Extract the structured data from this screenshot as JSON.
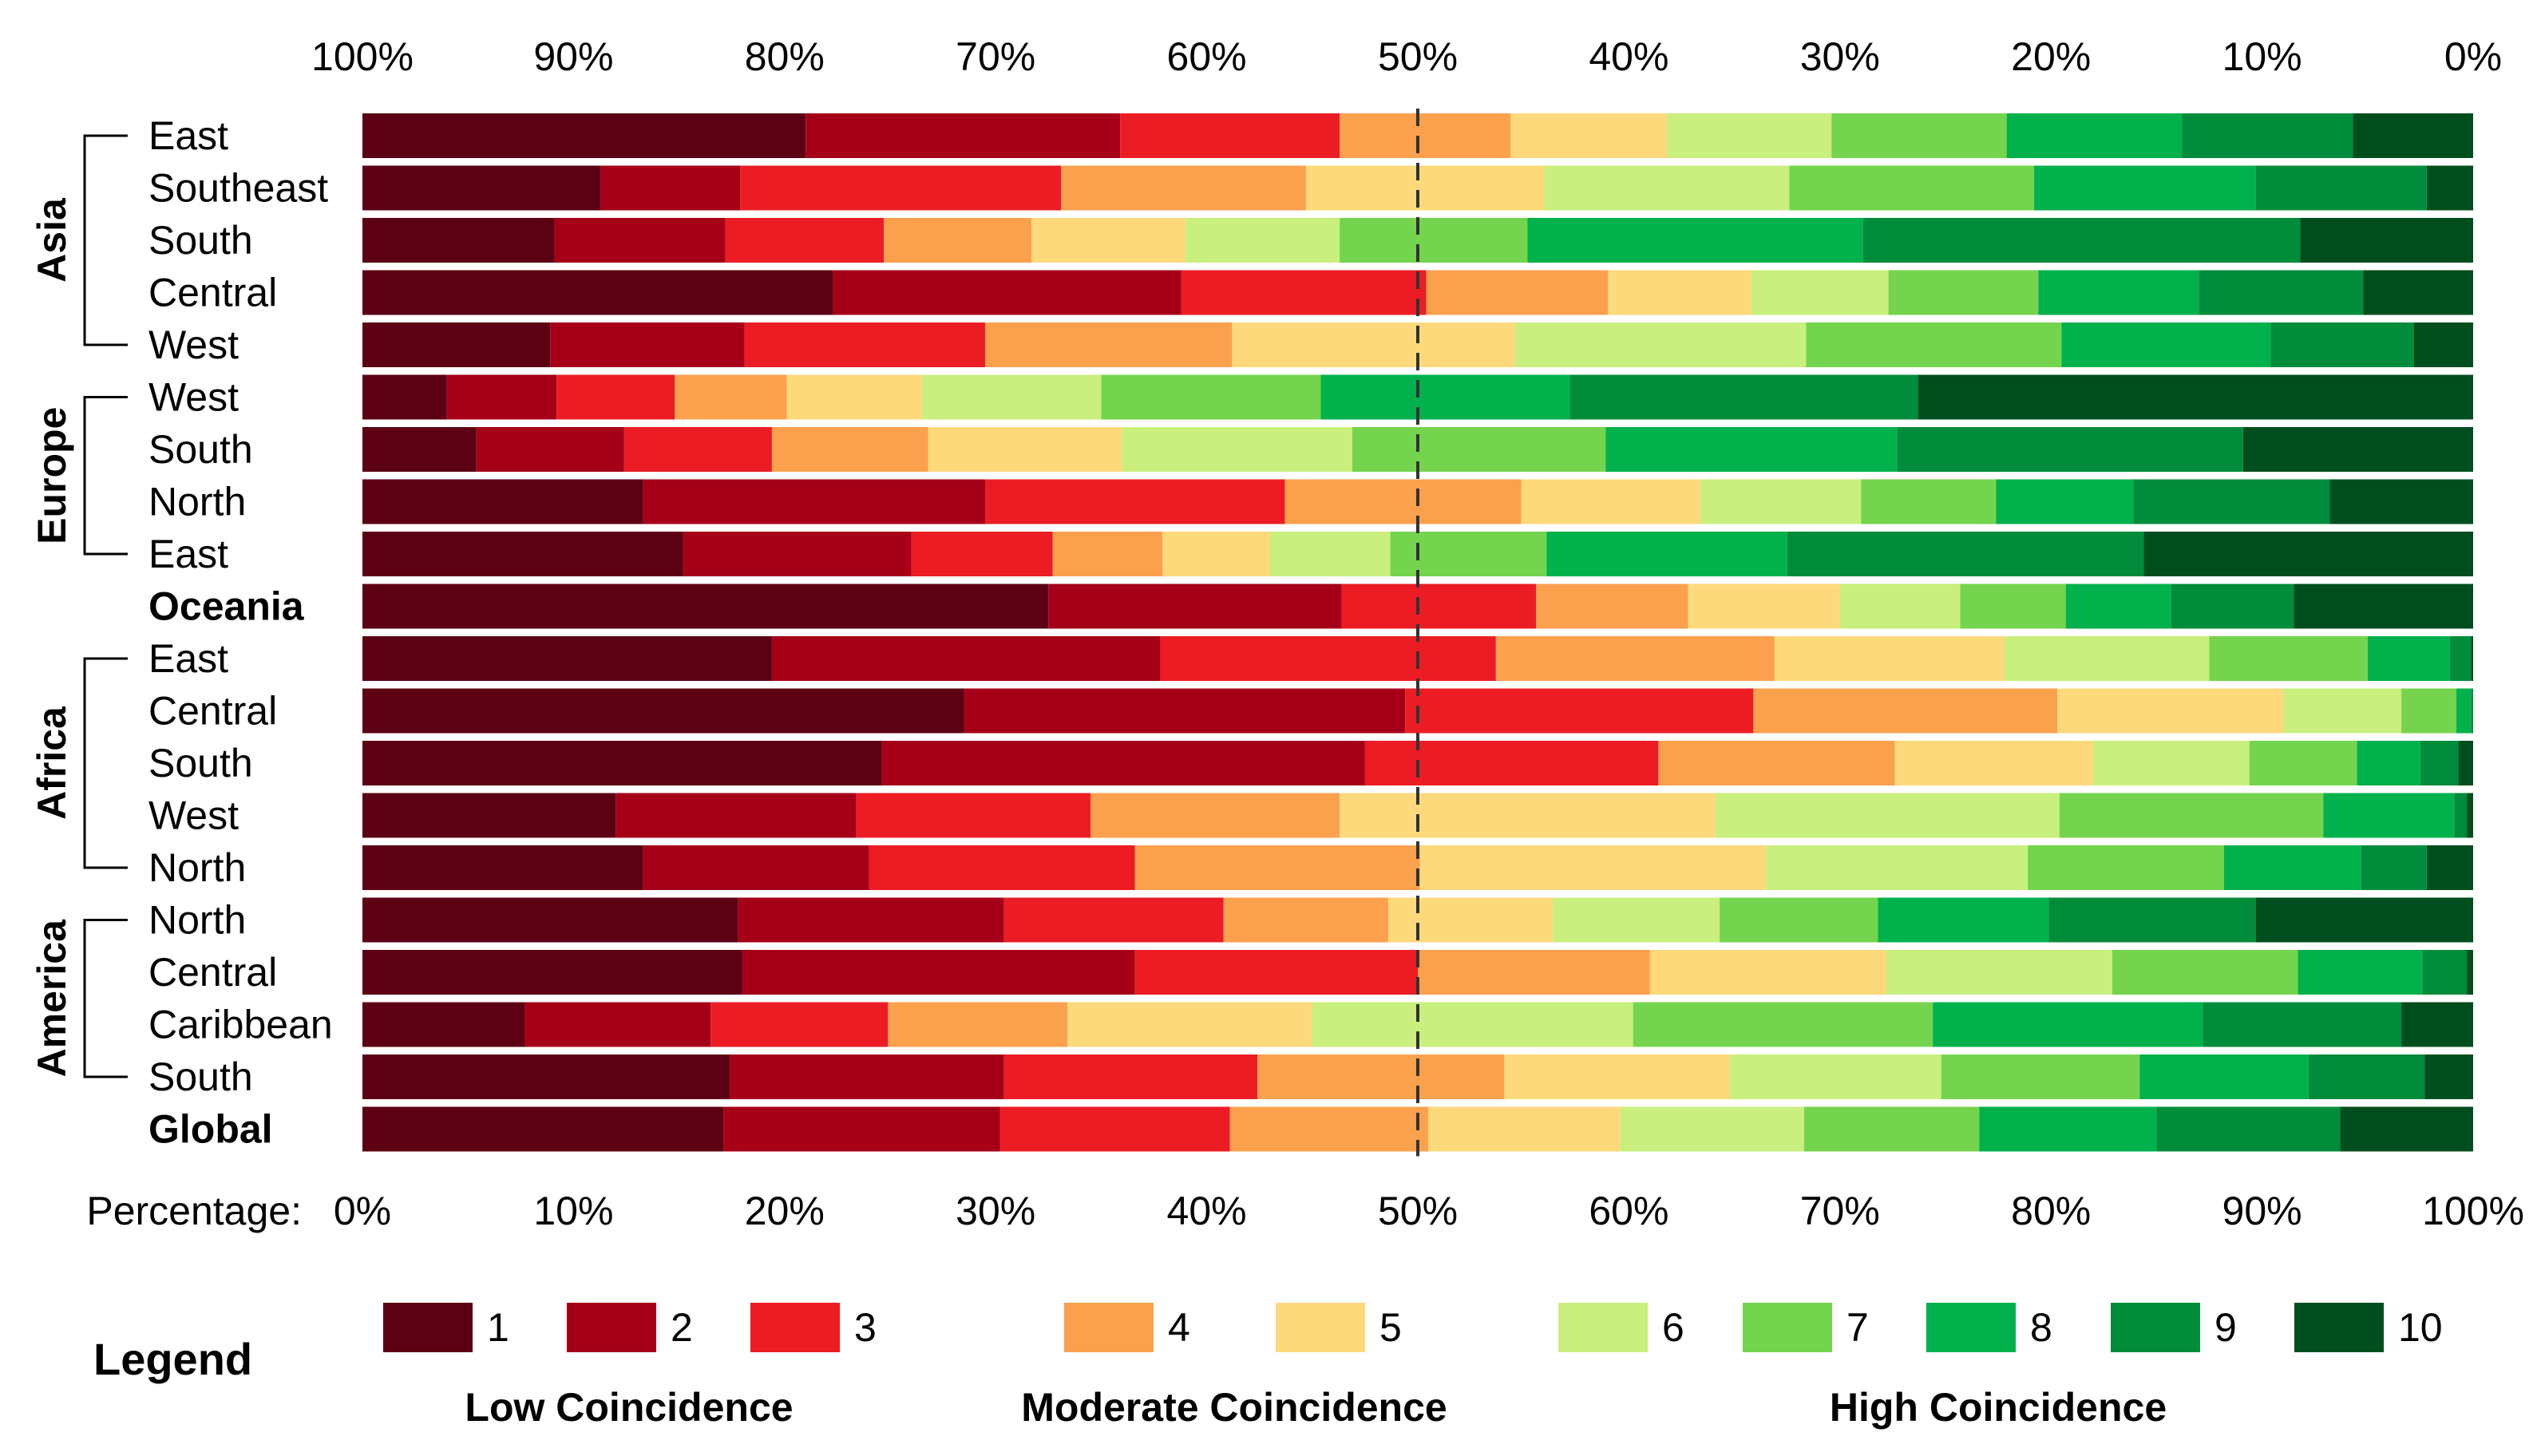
{
  "chart_data": {
    "type": "bar",
    "orientation": "horizontal",
    "stacked": true,
    "normalized_percent": true,
    "x_axis_label": "Percentage:",
    "bottom_ticks": [
      "0%",
      "10%",
      "20%",
      "30%",
      "40%",
      "50%",
      "60%",
      "70%",
      "80%",
      "90%",
      "100%"
    ],
    "top_ticks": [
      "100%",
      "90%",
      "80%",
      "70%",
      "60%",
      "50%",
      "40%",
      "30%",
      "20%",
      "10%",
      "0%"
    ],
    "xlim": [
      0,
      100
    ],
    "reference_line": 50,
    "groups": [
      {
        "name": "Asia",
        "rows": [
          "East",
          "Southeast",
          "South",
          "Central",
          "West"
        ]
      },
      {
        "name": "Europe",
        "rows": [
          "West",
          "South",
          "North",
          "East"
        ]
      },
      {
        "name": "",
        "rows": [
          "Oceania"
        ]
      },
      {
        "name": "Africa",
        "rows": [
          "East",
          "Central",
          "South",
          "West",
          "North"
        ]
      },
      {
        "name": "America",
        "rows": [
          "North",
          "Central",
          "Caribbean",
          "South"
        ]
      },
      {
        "name": "",
        "rows": [
          "Global"
        ]
      }
    ],
    "rows": [
      {
        "label": "East",
        "group": "Asia",
        "bold": false,
        "values": [
          21.0,
          14.9,
          10.4,
          8.1,
          7.4,
          7.8,
          8.3,
          8.3,
          8.1,
          5.7
        ]
      },
      {
        "label": "Southeast",
        "group": "Asia",
        "bold": false,
        "values": [
          11.3,
          6.6,
          15.2,
          11.6,
          11.3,
          11.6,
          11.6,
          10.5,
          8.1,
          2.2
        ]
      },
      {
        "label": "South",
        "group": "Asia",
        "bold": false,
        "values": [
          9.1,
          8.1,
          7.5,
          7.0,
          7.3,
          7.3,
          8.9,
          15.9,
          20.7,
          8.2
        ]
      },
      {
        "label": "Central",
        "group": "Asia",
        "bold": false,
        "values": [
          22.3,
          16.5,
          11.6,
          8.6,
          6.8,
          6.5,
          7.1,
          7.6,
          7.8,
          5.2
        ]
      },
      {
        "label": "West",
        "group": "Asia",
        "bold": false,
        "values": [
          8.9,
          9.2,
          11.4,
          11.7,
          13.4,
          13.8,
          12.1,
          9.9,
          6.8,
          2.8
        ]
      },
      {
        "label": "West",
        "group": "Europe",
        "bold": false,
        "values": [
          4.0,
          5.2,
          5.6,
          5.3,
          6.4,
          8.5,
          10.4,
          11.8,
          16.5,
          26.3
        ]
      },
      {
        "label": "South",
        "group": "Europe",
        "bold": false,
        "values": [
          5.4,
          7.0,
          7.0,
          7.4,
          9.2,
          10.9,
          12.0,
          13.8,
          16.4,
          10.9
        ]
      },
      {
        "label": "North",
        "group": "Europe",
        "bold": false,
        "values": [
          13.3,
          16.2,
          14.2,
          11.2,
          8.5,
          7.6,
          6.4,
          6.5,
          9.3,
          6.8
        ]
      },
      {
        "label": "East",
        "group": "Europe",
        "bold": false,
        "values": [
          15.2,
          10.8,
          6.7,
          5.2,
          5.1,
          5.7,
          7.4,
          11.4,
          16.9,
          15.6
        ]
      },
      {
        "label": "Oceania",
        "group": "",
        "bold": true,
        "values": [
          32.5,
          13.9,
          9.2,
          7.2,
          7.2,
          5.7,
          5.0,
          5.0,
          5.8,
          8.5
        ]
      },
      {
        "label": "East",
        "group": "Africa",
        "bold": false,
        "values": [
          19.4,
          18.4,
          15.9,
          13.2,
          10.9,
          9.7,
          7.5,
          3.9,
          1.0,
          0.1
        ]
      },
      {
        "label": "Central",
        "group": "Africa",
        "bold": false,
        "values": [
          28.5,
          20.9,
          16.5,
          14.4,
          10.7,
          5.6,
          2.6,
          0.7,
          0.1,
          0.0
        ]
      },
      {
        "label": "South",
        "group": "Africa",
        "bold": false,
        "values": [
          24.6,
          22.9,
          13.9,
          11.2,
          9.4,
          7.4,
          5.1,
          3.0,
          1.8,
          0.7
        ]
      },
      {
        "label": "West",
        "group": "Africa",
        "bold": false,
        "values": [
          12.0,
          11.4,
          11.1,
          11.8,
          17.8,
          16.3,
          12.5,
          6.2,
          0.6,
          0.3
        ]
      },
      {
        "label": "North",
        "group": "Africa",
        "bold": false,
        "values": [
          13.3,
          10.7,
          12.6,
          13.5,
          16.4,
          12.4,
          9.3,
          6.5,
          3.1,
          2.2
        ]
      },
      {
        "label": "North",
        "group": "America",
        "bold": false,
        "values": [
          17.8,
          12.6,
          10.4,
          7.8,
          7.8,
          7.9,
          7.5,
          8.1,
          9.8,
          10.3
        ]
      },
      {
        "label": "Central",
        "group": "America",
        "bold": false,
        "values": [
          18.0,
          18.6,
          13.4,
          11.0,
          11.2,
          10.7,
          8.8,
          5.9,
          2.1,
          0.3
        ]
      },
      {
        "label": "Caribbean",
        "group": "America",
        "bold": false,
        "values": [
          7.7,
          8.8,
          8.4,
          8.5,
          11.6,
          15.2,
          14.2,
          12.8,
          9.4,
          3.4
        ]
      },
      {
        "label": "South",
        "group": "America",
        "bold": false,
        "values": [
          17.4,
          13.0,
          12.0,
          11.7,
          10.7,
          10.0,
          9.4,
          8.0,
          5.5,
          2.3
        ]
      },
      {
        "label": "Global",
        "group": "",
        "bold": true,
        "values": [
          17.1,
          13.1,
          10.9,
          9.4,
          9.1,
          8.7,
          8.3,
          8.4,
          8.7,
          6.3
        ]
      }
    ],
    "legend": {
      "title": "Legend",
      "items": [
        "1",
        "2",
        "3",
        "4",
        "5",
        "6",
        "7",
        "8",
        "9",
        "10"
      ],
      "groups": [
        "Low Coincidence",
        "Moderate Coincidence",
        "High Coincidence"
      ]
    },
    "colors": [
      "#5c0013",
      "#a60018",
      "#ec1c24",
      "#fba04d",
      "#fdd97b",
      "#c9ef7e",
      "#74d44d",
      "#00b14c",
      "#008c3a",
      "#004e1e"
    ],
    "grid": false
  }
}
